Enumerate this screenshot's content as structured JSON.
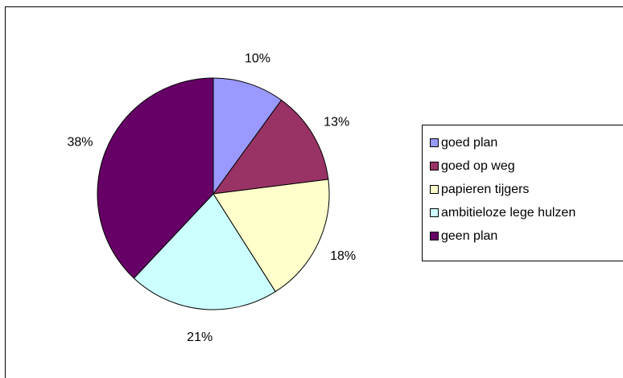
{
  "chart_data": {
    "type": "pie",
    "categories": [
      "goed plan",
      "goed op weg",
      "papieren tijgers",
      "ambitieloze lege hulzen",
      "geen plan"
    ],
    "values": [
      10,
      13,
      18,
      21,
      38
    ],
    "value_labels": [
      "10%",
      "13%",
      "18%",
      "21%",
      "38%"
    ],
    "colors": [
      "#9999FF",
      "#993366",
      "#FFFFCC",
      "#CCFFFF",
      "#660066"
    ],
    "start_angle_deg": 0,
    "direction": "clockwise",
    "legend": {
      "placement": "right",
      "items": [
        {
          "label": "goed plan",
          "color": "#9999FF"
        },
        {
          "label": "goed op weg",
          "color": "#993366"
        },
        {
          "label": "papieren tijgers",
          "color": "#FFFFCC"
        },
        {
          "label": "ambitieloze lege hulzen",
          "color": "#CCFFFF"
        },
        {
          "label": "geen plan",
          "color": "#660066"
        }
      ]
    }
  }
}
